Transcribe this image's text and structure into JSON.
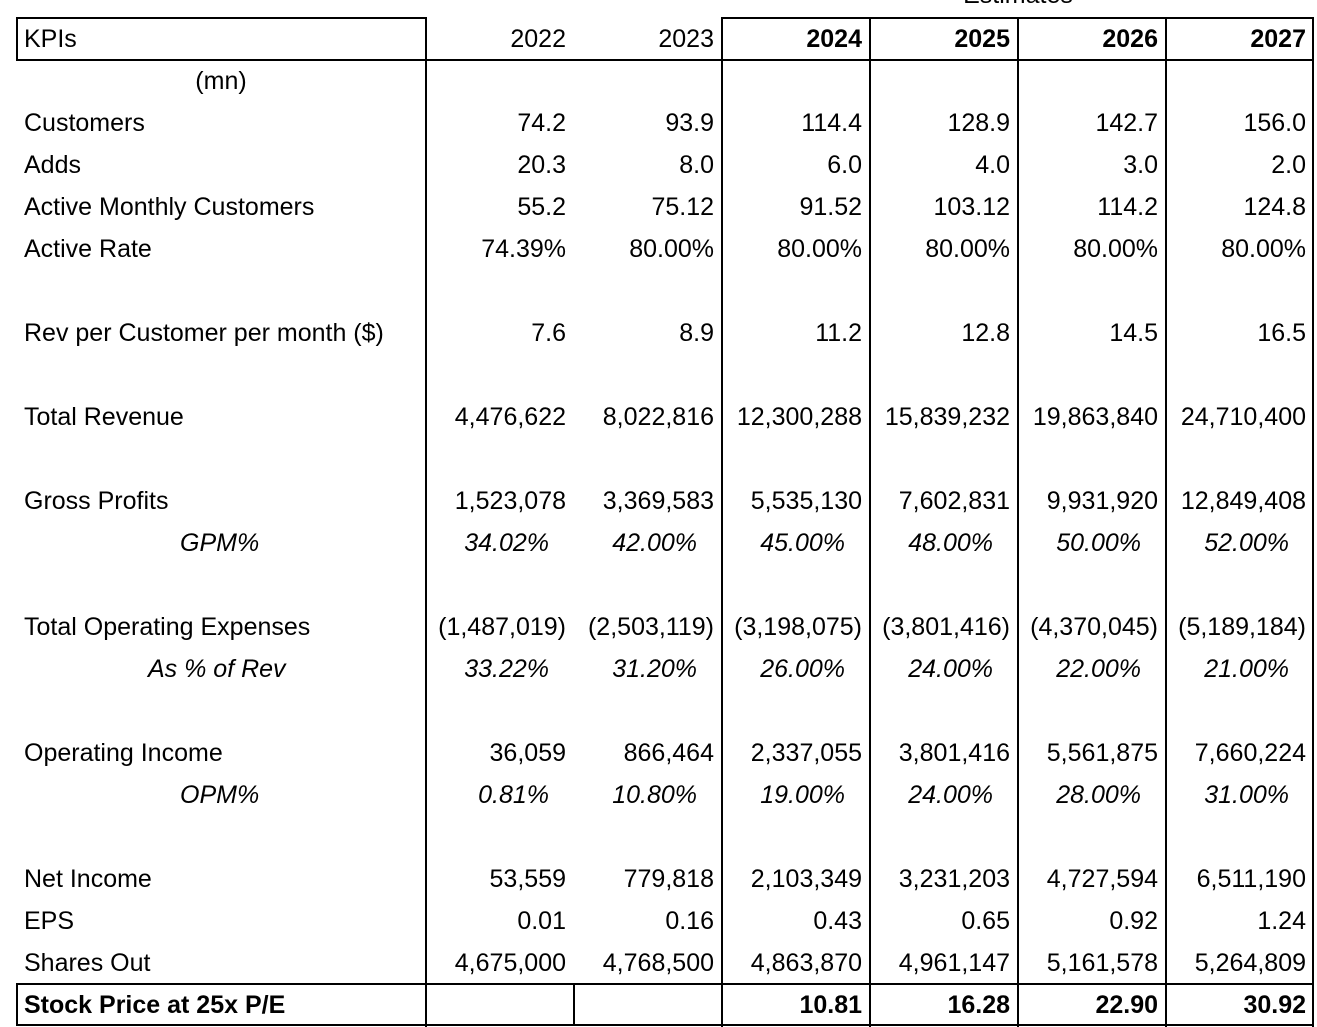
{
  "estimates_label": "Estimates",
  "header": {
    "label": "KPIs",
    "years": [
      "2022",
      "2023",
      "2024",
      "2025",
      "2026",
      "2027"
    ],
    "bold": [
      false,
      false,
      true,
      true,
      true,
      true
    ]
  },
  "unit_label": "(mn)",
  "rows": [
    {
      "label": "Customers",
      "values": [
        "74.2",
        "93.9",
        "114.4",
        "128.9",
        "142.7",
        "156.0"
      ]
    },
    {
      "label": "Adds",
      "values": [
        "20.3",
        "8.0",
        "6.0",
        "4.0",
        "3.0",
        "2.0"
      ]
    },
    {
      "label": "Active Monthly Customers",
      "values": [
        "55.2",
        "75.12",
        "91.52",
        "103.12",
        "114.2",
        "124.8"
      ]
    },
    {
      "label": "Active Rate",
      "values": [
        "74.39%",
        "80.00%",
        "80.00%",
        "80.00%",
        "80.00%",
        "80.00%"
      ]
    },
    {
      "label": "Rev per Customer per month ($)",
      "values": [
        "7.6",
        "8.9",
        "11.2",
        "12.8",
        "14.5",
        "16.5"
      ]
    },
    {
      "label": "Total Revenue",
      "values": [
        "4,476,622",
        "8,022,816",
        "12,300,288",
        "15,839,232",
        "19,863,840",
        "24,710,400"
      ]
    },
    {
      "label": "Gross Profits",
      "values": [
        "1,523,078",
        "3,369,583",
        "5,535,130",
        "7,602,831",
        "9,931,920",
        "12,849,408"
      ]
    },
    {
      "label": "GPM%",
      "values": [
        "34.02%",
        "42.00%",
        "45.00%",
        "48.00%",
        "50.00%",
        "52.00%"
      ]
    },
    {
      "label": "Total Operating Expenses",
      "values": [
        "(1,487,019)",
        "(2,503,119)",
        "(3,198,075)",
        "(3,801,416)",
        "(4,370,045)",
        "(5,189,184)"
      ]
    },
    {
      "label": "As % of Rev",
      "values": [
        "33.22%",
        "31.20%",
        "26.00%",
        "24.00%",
        "22.00%",
        "21.00%"
      ]
    },
    {
      "label": "Operating Income",
      "values": [
        "36,059",
        "866,464",
        "2,337,055",
        "3,801,416",
        "5,561,875",
        "7,660,224"
      ]
    },
    {
      "label": "OPM%",
      "values": [
        "0.81%",
        "10.80%",
        "19.00%",
        "24.00%",
        "28.00%",
        "31.00%"
      ]
    },
    {
      "label": "Net Income",
      "values": [
        "53,559",
        "779,818",
        "2,103,349",
        "3,231,203",
        "4,727,594",
        "6,511,190"
      ]
    },
    {
      "label": "EPS",
      "values": [
        "0.01",
        "0.16",
        "0.43",
        "0.65",
        "0.92",
        "1.24"
      ]
    },
    {
      "label": "Shares Out",
      "values": [
        "4,675,000",
        "4,768,500",
        "4,863,870",
        "4,961,147",
        "5,161,578",
        "5,264,809"
      ]
    }
  ],
  "total_row": {
    "label": "Stock Price at 25x P/E",
    "values": [
      "",
      "",
      "10.81",
      "16.28",
      "22.90",
      "30.92"
    ]
  }
}
